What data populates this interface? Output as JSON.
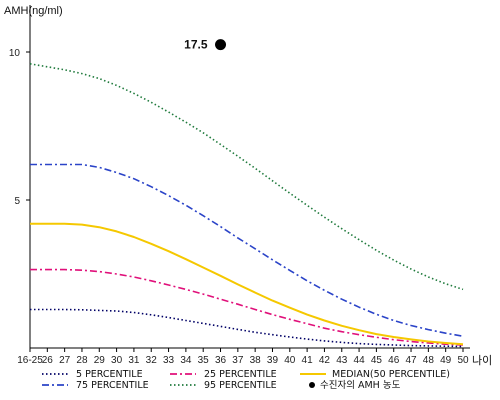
{
  "chart_data": {
    "type": "line",
    "ylabel": "AMH(ng/ml)",
    "xlabel": "나이",
    "categories": [
      "16-25",
      "26",
      "27",
      "28",
      "29",
      "30",
      "31",
      "32",
      "33",
      "34",
      "35",
      "36",
      "37",
      "38",
      "39",
      "40",
      "41",
      "42",
      "43",
      "44",
      "45",
      "46",
      "47",
      "48",
      "49",
      "50"
    ],
    "y_ticks": [
      5,
      10
    ],
    "ylim": [
      0,
      11
    ],
    "series": [
      {
        "name": "5 PERCENTILE",
        "color": "#000066",
        "dash": "1.5 2.5",
        "values": [
          1.3,
          1.3,
          1.3,
          1.29,
          1.27,
          1.25,
          1.2,
          1.12,
          1.03,
          0.93,
          0.83,
          0.73,
          0.63,
          0.53,
          0.45,
          0.37,
          0.3,
          0.24,
          0.19,
          0.15,
          0.12,
          0.1,
          0.08,
          0.07,
          0.06,
          0.05
        ]
      },
      {
        "name": "25 PERCENTILE",
        "color": "#e0107a",
        "dash": "7 3 2 3",
        "values": [
          2.65,
          2.65,
          2.65,
          2.63,
          2.58,
          2.5,
          2.4,
          2.27,
          2.13,
          1.98,
          1.82,
          1.65,
          1.48,
          1.3,
          1.13,
          0.97,
          0.82,
          0.67,
          0.55,
          0.45,
          0.36,
          0.28,
          0.22,
          0.17,
          0.13,
          0.1
        ]
      },
      {
        "name": "75 PERCENTILE",
        "color": "#2b44c8",
        "dash": "7 3 2 3",
        "values": [
          6.2,
          6.2,
          6.2,
          6.2,
          6.1,
          5.93,
          5.72,
          5.45,
          5.15,
          4.82,
          4.47,
          4.1,
          3.72,
          3.35,
          2.98,
          2.62,
          2.27,
          1.95,
          1.65,
          1.38,
          1.14,
          0.93,
          0.76,
          0.62,
          0.5,
          0.4
        ]
      },
      {
        "name": "95 PERCENTILE",
        "color": "#1f7a3c",
        "dash": "1.5 2.5",
        "values": [
          9.6,
          9.5,
          9.4,
          9.27,
          9.1,
          8.87,
          8.6,
          8.3,
          7.97,
          7.63,
          7.27,
          6.88,
          6.48,
          6.07,
          5.65,
          5.23,
          4.82,
          4.42,
          4.03,
          3.66,
          3.3,
          2.97,
          2.67,
          2.4,
          2.17,
          1.98
        ]
      },
      {
        "name": "MEDIAN(50 PERCENTILE)",
        "color": "#f5c800",
        "dash": "",
        "values": [
          4.2,
          4.2,
          4.2,
          4.17,
          4.08,
          3.94,
          3.75,
          3.52,
          3.27,
          3.0,
          2.72,
          2.44,
          2.15,
          1.87,
          1.6,
          1.36,
          1.13,
          0.93,
          0.75,
          0.6,
          0.47,
          0.37,
          0.29,
          0.22,
          0.17,
          0.13
        ]
      }
    ],
    "point": {
      "name": "수진자의 AMH 농도",
      "x": "36",
      "y": 10.25,
      "label": "17.5"
    },
    "legend_placement": "bottom",
    "grid": false
  }
}
